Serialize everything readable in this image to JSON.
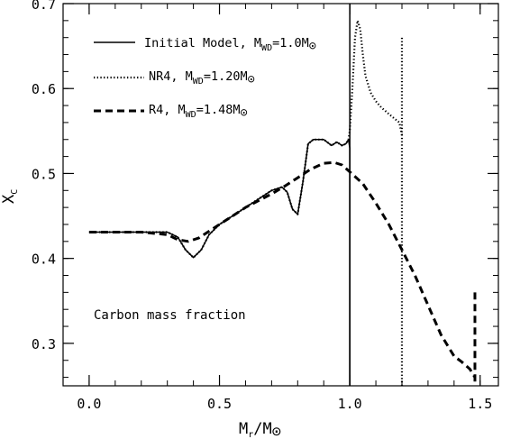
{
  "chart_data": {
    "type": "line",
    "title": "",
    "xlabel": {
      "main": "M",
      "sub": "r",
      "tail": "/M",
      "sun": "⊙"
    },
    "ylabel": {
      "main": "X",
      "sub": "C"
    },
    "xlim": [
      -0.1,
      1.57
    ],
    "ylim": [
      0.25,
      0.7
    ],
    "x_ticks": [
      0.0,
      0.5,
      1.0,
      1.5
    ],
    "x_tick_labels": [
      "0.0",
      "0.5",
      "1.0",
      "1.5"
    ],
    "y_ticks": [
      0.3,
      0.4,
      0.5,
      0.6,
      0.7
    ],
    "y_tick_labels": [
      "0.3",
      "0.4",
      "0.5",
      "0.6",
      "0.7"
    ],
    "x_minor_step": 0.1,
    "y_minor_step": 0.02,
    "grid": false,
    "legend_position": "top-left",
    "annotation": "Carbon mass fraction",
    "series": [
      {
        "name_main": "Initial Model, M",
        "name_sub": "WD",
        "name_tail": "=1.0M",
        "sun": "⊙",
        "style": "solid",
        "x": [
          0.0,
          0.1,
          0.2,
          0.3,
          0.34,
          0.37,
          0.4,
          0.43,
          0.46,
          0.5,
          0.55,
          0.6,
          0.65,
          0.7,
          0.74,
          0.76,
          0.78,
          0.8,
          0.82,
          0.84,
          0.86,
          0.9,
          0.93,
          0.95,
          0.97,
          0.985,
          0.995,
          1.0,
          1.0
        ],
        "y": [
          0.431,
          0.431,
          0.431,
          0.431,
          0.425,
          0.41,
          0.401,
          0.41,
          0.428,
          0.44,
          0.45,
          0.46,
          0.47,
          0.48,
          0.484,
          0.478,
          0.458,
          0.452,
          0.49,
          0.535,
          0.54,
          0.54,
          0.533,
          0.537,
          0.533,
          0.535,
          0.54,
          0.53,
          0.25
        ],
        "spike": {
          "x": 1.0,
          "y_from": 0.25,
          "y_to": 0.7
        }
      },
      {
        "name_main": "NR4, M",
        "name_sub": "WD",
        "name_tail": "=1.20M",
        "sun": "⊙",
        "style": "dotted",
        "x": [
          0.0,
          0.1,
          0.2,
          0.3,
          0.34,
          0.37,
          0.4,
          0.43,
          0.46,
          0.5,
          0.55,
          0.6,
          0.65,
          0.7,
          0.74,
          0.76,
          0.78,
          0.8,
          0.82,
          0.84,
          0.86,
          0.9,
          0.93,
          0.95,
          0.97,
          0.985,
          0.995,
          1.0,
          1.01,
          1.02,
          1.03,
          1.04,
          1.05,
          1.06,
          1.08,
          1.1,
          1.12,
          1.15,
          1.17,
          1.19,
          1.2
        ],
        "y": [
          0.431,
          0.431,
          0.431,
          0.431,
          0.425,
          0.41,
          0.401,
          0.41,
          0.428,
          0.44,
          0.45,
          0.46,
          0.47,
          0.48,
          0.484,
          0.478,
          0.458,
          0.452,
          0.49,
          0.535,
          0.54,
          0.54,
          0.533,
          0.537,
          0.533,
          0.535,
          0.54,
          0.55,
          0.6,
          0.66,
          0.68,
          0.67,
          0.64,
          0.615,
          0.595,
          0.585,
          0.578,
          0.57,
          0.565,
          0.56,
          0.545
        ],
        "spike": {
          "x": 1.2,
          "y_from": 0.25,
          "y_to": 0.66
        }
      },
      {
        "name_main": "R4,  M",
        "name_sub": "WD",
        "name_tail": "=1.48M",
        "sun": "⊙",
        "style": "dashed",
        "x": [
          0.0,
          0.1,
          0.2,
          0.3,
          0.34,
          0.38,
          0.42,
          0.46,
          0.5,
          0.55,
          0.6,
          0.65,
          0.7,
          0.75,
          0.8,
          0.85,
          0.9,
          0.94,
          0.97,
          1.0,
          1.05,
          1.1,
          1.15,
          1.2,
          1.25,
          1.3,
          1.35,
          1.4,
          1.43,
          1.46,
          1.47,
          1.48
        ],
        "y": [
          0.431,
          0.431,
          0.431,
          0.428,
          0.422,
          0.42,
          0.424,
          0.432,
          0.44,
          0.45,
          0.46,
          0.468,
          0.476,
          0.485,
          0.495,
          0.505,
          0.512,
          0.513,
          0.51,
          0.502,
          0.488,
          0.465,
          0.44,
          0.41,
          0.38,
          0.345,
          0.31,
          0.285,
          0.278,
          0.27,
          0.265,
          0.26
        ],
        "spike": {
          "x": 1.48,
          "y_from": 0.255,
          "y_to": 0.36
        }
      }
    ]
  }
}
